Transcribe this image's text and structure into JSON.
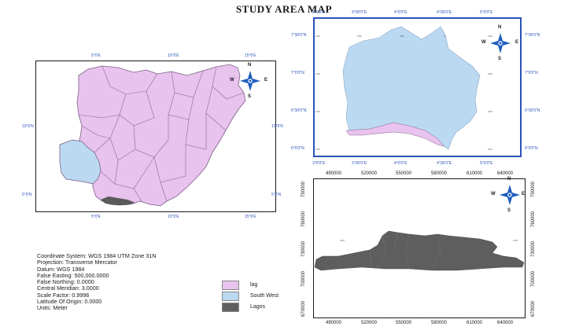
{
  "title": "STUDY AREA MAP",
  "map_info": [
    "Coordinate System: WGS 1984 UTM Zone 31N",
    "Projection: Transverse Mercator",
    "Datum: WGS 1984",
    "False Easting: 500,000.0000",
    "False Northing: 0.0000",
    "Central Meridian: 3.0000",
    "Scale Factor: 0.9996",
    "Latitude Of Origin: 0.0000",
    "Units: Meter"
  ],
  "legend": [
    {
      "label": "lag",
      "color": "#e8c3ee"
    },
    {
      "label": "South West",
      "color": "#bcd9f2"
    },
    {
      "label": "Lagos",
      "color": "#606060"
    }
  ],
  "nigeria_map": {
    "top_ticks": [
      "5°0'E",
      "10°0'E",
      "15°0'E"
    ],
    "bottom_ticks": [
      "5°0'E",
      "10°0'E",
      "15°0'E"
    ],
    "left_ticks": [
      "10°0'N",
      "5°0'N"
    ],
    "right_ticks": [
      "10°0'N",
      "5°0'N"
    ]
  },
  "southwest_map": {
    "top_ticks": [
      "3°0'0\"E",
      "3°30'0\"E",
      "4°0'0\"E",
      "4°30'0\"E",
      "5°0'0\"E"
    ],
    "bottom_ticks": [
      "3°0'0\"E",
      "3°30'0\"E",
      "4°0'0\"E",
      "4°30'0\"E",
      "5°0'0\"E"
    ],
    "left_ticks": [
      "7°30'0\"N",
      "7°0'0\"N",
      "6°30'0\"N",
      "6°0'0\"N"
    ],
    "right_ticks": [
      "7°30'0\"N",
      "7°0'0\"N",
      "6°30'0\"N",
      "6°0'0\"N"
    ]
  },
  "lagos_map": {
    "top_ticks": [
      "490000",
      "520000",
      "550000",
      "580000",
      "610000",
      "640000"
    ],
    "bottom_ticks": [
      "490000",
      "520000",
      "550000",
      "580000",
      "610000",
      "640000"
    ],
    "left_ticks": [
      "790000",
      "760000",
      "730000",
      "700000",
      "670000"
    ],
    "right_ticks": [
      "790000",
      "760000",
      "730000",
      "700000",
      "670000"
    ]
  },
  "north_arrow": {
    "n": "N",
    "s": "S",
    "e": "E",
    "w": "W"
  }
}
